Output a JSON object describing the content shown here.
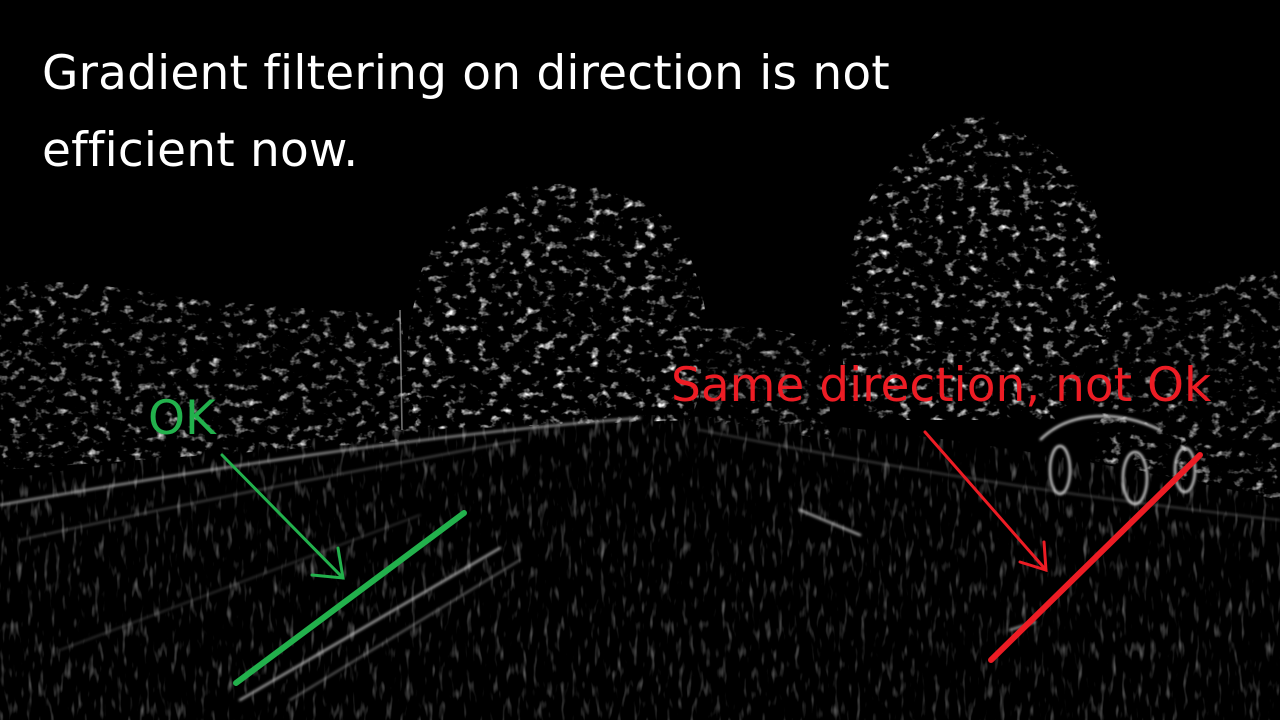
{
  "title": {
    "line1": "Gradient filtering on direction is not",
    "line2": "efficient now."
  },
  "annotations": {
    "ok": {
      "text": "OK",
      "color": "#22b14c"
    },
    "not_ok": {
      "text": "Same direction, not Ok",
      "color": "#ed1c24"
    }
  },
  "background_color": "#000000",
  "text_color": "#ffffff"
}
